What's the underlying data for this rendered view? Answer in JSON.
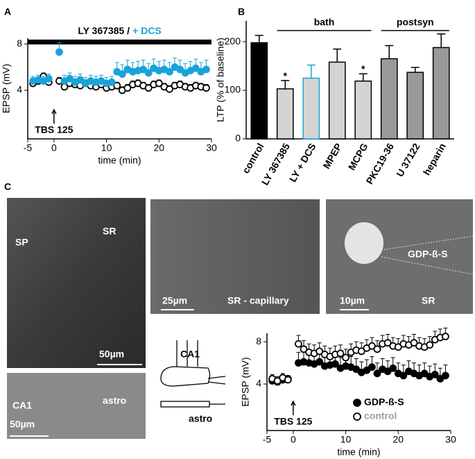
{
  "panel_labels": [
    "A",
    "B",
    "C"
  ],
  "image_labels": [
    "SP",
    "SR",
    "50µm",
    "SR - capillary",
    "25µm",
    "10µm",
    "GDP-ß-S",
    "SR",
    "CA1",
    "astro",
    "50µm",
    "CA1",
    "astro"
  ],
  "chart_data": [
    {
      "type": "scatter",
      "title": [
        "LY 367385 /",
        "+ DCS"
      ],
      "title_colors": [
        "#000000",
        "#1aa3d9"
      ],
      "x_label": "time (min)",
      "y_label": "EPSP (mV)",
      "xlim": [
        -5,
        30
      ],
      "xticks": [
        -5,
        0,
        10,
        20,
        30
      ],
      "ylim": [
        -0.2,
        8.5
      ],
      "yticks": [
        4,
        8
      ],
      "annotations": [
        {
          "text": "TBS 125",
          "x": 0
        }
      ],
      "x": [
        -4,
        -3,
        -2,
        -1,
        1,
        2,
        3,
        4,
        5,
        6,
        7,
        8,
        9,
        10,
        11,
        12,
        13,
        14,
        15,
        16,
        17,
        18,
        19,
        20,
        21,
        22,
        23,
        24,
        25,
        26,
        27,
        28,
        29
      ],
      "series": [
        {
          "color": "#000000",
          "marker": "open",
          "values": [
            4.6,
            4.8,
            5.2,
            4.7,
            4.8,
            4.3,
            4.6,
            4.5,
            4.4,
            4.6,
            4.4,
            4.3,
            4.5,
            4.2,
            4.3,
            4.4,
            4.0,
            4.2,
            4.5,
            4.6,
            4.4,
            4.2,
            4.5,
            4.6,
            4.3,
            4.1,
            4.4,
            4.5,
            4.3,
            4.2,
            4.4,
            4.3,
            4.2
          ],
          "errors": [
            0.3,
            0.3,
            0.3,
            0.3,
            0.3,
            0.3,
            0.3,
            0.3,
            0.3,
            0.3,
            0.3,
            0.3,
            0.3,
            0.3,
            0.3,
            0.3,
            0.3,
            0.3,
            0.3,
            0.3,
            0.3,
            0.3,
            0.3,
            0.3,
            0.3,
            0.3,
            0.3,
            0.3,
            0.3,
            0.3,
            0.3,
            0.3,
            0.3
          ]
        },
        {
          "color": "#1aa3d9",
          "marker": "filled",
          "values": [
            4.8,
            4.9,
            4.8,
            5.0,
            7.3,
            4.8,
            5.0,
            4.7,
            4.9,
            4.6,
            4.8,
            4.7,
            4.8,
            4.6,
            4.7,
            5.6,
            5.4,
            5.8,
            5.6,
            5.7,
            5.8,
            5.5,
            5.9,
            5.7,
            5.8,
            5.6,
            6.0,
            5.8,
            5.5,
            5.7,
            5.9,
            5.6,
            5.8
          ],
          "errors": [
            0.4,
            0.4,
            0.4,
            0.4,
            0.8,
            0.5,
            0.5,
            0.5,
            0.5,
            0.5,
            0.5,
            0.5,
            0.5,
            0.5,
            0.5,
            0.8,
            0.8,
            0.8,
            0.8,
            0.8,
            0.8,
            0.8,
            0.8,
            0.8,
            0.8,
            0.8,
            0.8,
            0.8,
            0.8,
            0.8,
            0.8,
            0.8,
            0.8
          ]
        }
      ]
    },
    {
      "type": "bar",
      "y_label": "LTP (% of baseline)",
      "categories": [
        "control",
        "LY 367385",
        "LY + DCS",
        "MPEP",
        "MCPG",
        "PKC19-36",
        "U 37122",
        "heparin"
      ],
      "values": [
        198,
        103,
        125,
        158,
        119,
        165,
        137,
        188
      ],
      "errors": [
        15,
        17,
        27,
        27,
        15,
        27,
        10,
        28
      ],
      "colors": [
        "#000000",
        "#d4d4d4",
        "#d4d4d4",
        "#d4d4d4",
        "#d4d4d4",
        "#9a9a9a",
        "#9a9a9a",
        "#9a9a9a"
      ],
      "edge_colors": [
        "#000000",
        "#000000",
        "#1aa3d9",
        "#000000",
        "#000000",
        "#000000",
        "#000000",
        "#000000"
      ],
      "ylim": [
        0,
        243
      ],
      "yticks": [
        0,
        100,
        200
      ],
      "groups": [
        {
          "label": "bath",
          "from": "LY 367385",
          "to": "MCPG"
        },
        {
          "label": "postsyn",
          "from": "PKC19-36",
          "to": "heparin"
        }
      ],
      "stars": [
        {
          "category": "LY 367385",
          "text": "*"
        },
        {
          "category": "MCPG",
          "text": "*"
        }
      ]
    },
    {
      "type": "scatter",
      "x_label": "time (min)",
      "y_label": "EPSP (mV)",
      "xlim": [
        -5,
        30
      ],
      "xticks": [
        -5,
        0,
        10,
        20,
        30
      ],
      "ylim": [
        -0.4,
        8.8
      ],
      "yticks": [
        4,
        8
      ],
      "annotations": [
        {
          "text": "TBS 125",
          "x": 0
        }
      ],
      "legend": "lower-right",
      "x": [
        -4,
        -3,
        -2,
        -1,
        1,
        2,
        3,
        4,
        5,
        6,
        7,
        8,
        9,
        10,
        11,
        12,
        13,
        14,
        15,
        16,
        17,
        18,
        19,
        20,
        21,
        22,
        23,
        24,
        25,
        26,
        27,
        28,
        29
      ],
      "series": [
        {
          "name": "GDP-ß-S",
          "color": "#000000",
          "marker": "filled",
          "values": [
            4.3,
            4.2,
            4.4,
            4.5,
            6.0,
            6.1,
            6.0,
            5.9,
            6.1,
            5.7,
            5.8,
            5.9,
            5.5,
            5.7,
            5.6,
            5.4,
            5.1,
            5.3,
            5.6,
            5.0,
            5.4,
            5.2,
            5.5,
            5.0,
            4.8,
            5.2,
            5.0,
            4.8,
            5.0,
            4.7,
            4.9,
            4.5,
            4.8
          ],
          "errors": [
            0.3,
            0.3,
            0.3,
            0.3,
            1.0,
            1.0,
            1.0,
            1.0,
            1.0,
            1.0,
            1.0,
            1.0,
            1.0,
            1.0,
            1.0,
            1.0,
            1.0,
            1.0,
            1.0,
            1.0,
            1.0,
            1.0,
            1.0,
            1.0,
            1.0,
            1.0,
            1.0,
            1.0,
            1.0,
            1.0,
            1.0,
            1.0,
            1.0
          ]
        },
        {
          "name": "control",
          "color": "#000000",
          "marker": "open",
          "label_color": "#a0a0a0",
          "values": [
            4.5,
            4.3,
            4.6,
            4.4,
            7.8,
            7.3,
            7.0,
            6.9,
            7.1,
            6.8,
            6.6,
            6.8,
            6.9,
            6.5,
            7.0,
            7.2,
            7.1,
            7.4,
            7.6,
            7.3,
            7.8,
            7.9,
            7.6,
            7.5,
            7.8,
            7.7,
            7.9,
            7.6,
            7.5,
            7.7,
            8.2,
            8.4,
            8.5
          ],
          "errors": [
            0.4,
            0.4,
            0.4,
            0.4,
            0.8,
            0.8,
            0.8,
            0.8,
            0.8,
            0.8,
            0.8,
            0.8,
            0.8,
            0.8,
            0.8,
            0.8,
            0.8,
            0.8,
            0.8,
            0.8,
            0.8,
            0.8,
            0.8,
            0.8,
            0.8,
            0.8,
            0.8,
            0.8,
            0.8,
            0.8,
            0.8,
            0.8,
            0.8
          ]
        }
      ]
    }
  ]
}
